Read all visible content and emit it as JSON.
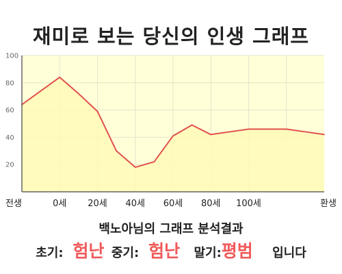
{
  "title": "재미로 보는 당신의 인생 그래프",
  "colors": {
    "plot_background": "#ffffd8",
    "area_fill": "#fffab8",
    "line": "#e05050",
    "highlight_text": "#f05a5a",
    "grid": "#e4e4cc"
  },
  "chart_data": {
    "type": "area",
    "title": "재미로 보는 당신의 인생 그래프",
    "xlabel": "",
    "ylabel": "",
    "x_labels": [
      "전생",
      "0세",
      "20세",
      "40세",
      "60세",
      "80세",
      "100세",
      "환생"
    ],
    "y_ticks": [
      20,
      40,
      60,
      80,
      100
    ],
    "ylim": [
      0,
      100
    ],
    "grid": true,
    "series": [
      {
        "x": [
          -1,
          -0.5,
          0,
          0.5,
          1,
          1.5,
          2,
          2.5,
          3,
          3.5,
          4,
          4.5,
          5,
          5.5,
          6,
          6.5,
          7
        ],
        "values": [
          64,
          74,
          84,
          72,
          59,
          30,
          18,
          22,
          41,
          49,
          42,
          44,
          46,
          46,
          46,
          44,
          42
        ]
      }
    ]
  },
  "summary": {
    "title": "백노아님의 그래프 분석결과",
    "early_label": "초기:",
    "early_value": "험난",
    "middle_label": "중기:",
    "middle_value": "험난",
    "late_label": "말기:",
    "late_value": "평범",
    "ending": "입니다"
  }
}
